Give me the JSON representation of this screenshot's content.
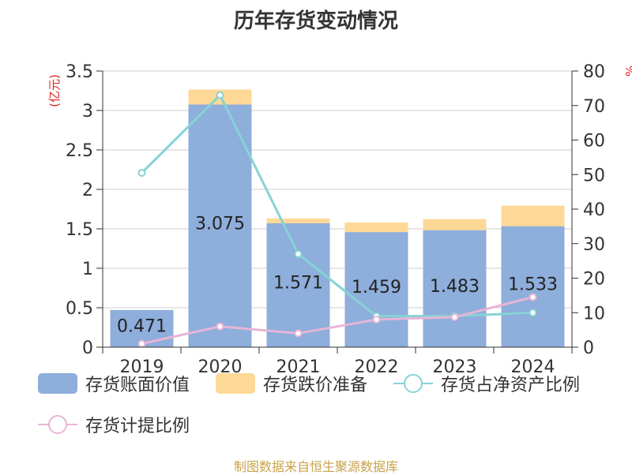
{
  "title": "历年存货变动情况",
  "source": "制图数据来自恒生聚源数据库",
  "chart_data": {
    "type": "bar",
    "categories": [
      "2019",
      "2020",
      "2021",
      "2022",
      "2023",
      "2024"
    ],
    "y_left": {
      "label": "(亿元)",
      "ylim": [
        0,
        3.5
      ],
      "ticks": [
        "0",
        "0.5",
        "1",
        "1.5",
        "2",
        "2.5",
        "3",
        "3.5"
      ]
    },
    "y_right": {
      "label": "%",
      "ylim": [
        0,
        80
      ],
      "ticks": [
        "0",
        "10",
        "20",
        "30",
        "40",
        "50",
        "60",
        "70",
        "80"
      ]
    },
    "series": [
      {
        "name": "存货账面价值",
        "kind": "bar",
        "stack": "s",
        "axis": "left",
        "color": "#8eaedb",
        "values": [
          0.471,
          3.075,
          1.571,
          1.459,
          1.483,
          1.533
        ],
        "labels": [
          "0.471",
          "3.075",
          "1.571",
          "1.459",
          "1.483",
          "1.533"
        ]
      },
      {
        "name": "存货跌价准备",
        "kind": "bar",
        "stack": "s",
        "axis": "left",
        "color": "#fdd896",
        "values": [
          0,
          0.19,
          0.06,
          0.12,
          0.14,
          0.26
        ]
      },
      {
        "name": "存货占净资产比例",
        "kind": "line",
        "axis": "right",
        "color": "#86d3d6",
        "values": [
          50.5,
          73,
          27,
          9,
          9,
          10
        ]
      },
      {
        "name": "存货计提比例",
        "kind": "line",
        "axis": "right",
        "color": "#e7b5d6",
        "values": [
          1,
          6,
          4,
          8,
          8.7,
          14.5
        ]
      }
    ],
    "grid": true,
    "legend_position": "bottom"
  }
}
